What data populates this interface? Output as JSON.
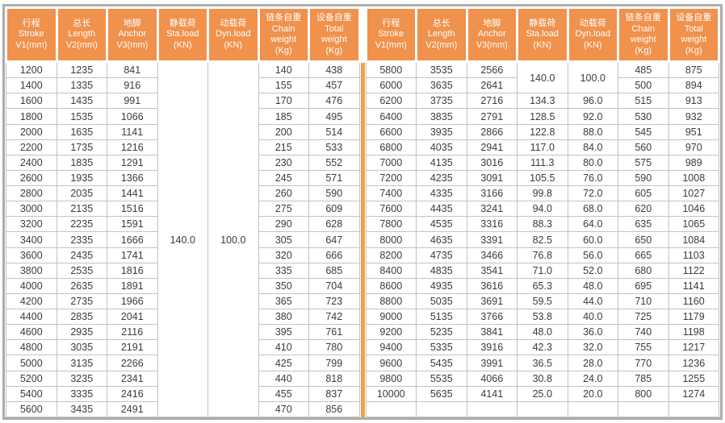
{
  "table": {
    "columns": [
      {
        "id": "stroke",
        "lines": [
          "行程",
          "Stroke",
          "V1(mm)"
        ]
      },
      {
        "id": "length",
        "lines": [
          "总长",
          "Length",
          "V2(mm)"
        ]
      },
      {
        "id": "anchor",
        "lines": [
          "地脚",
          "Anchor",
          "V3(mm)"
        ]
      },
      {
        "id": "sta-load",
        "lines": [
          "静载荷",
          "Sta.load",
          "(KN)"
        ]
      },
      {
        "id": "dyn-load",
        "lines": [
          "动载荷",
          "Dyn.load",
          "(KN)"
        ]
      },
      {
        "id": "chain-weight",
        "lines": [
          "链条自重",
          "Chain",
          "weight",
          "(Kg)"
        ]
      },
      {
        "id": "total-weight",
        "lines": [
          "设备自重",
          "Total",
          "weight",
          "(Kg)"
        ]
      }
    ],
    "halves": {
      "left": {
        "rows": [
          [
            "1200",
            "1235",
            "841",
            "140.0",
            "100.0",
            "140",
            "438"
          ],
          [
            "1400",
            "1335",
            "916",
            null,
            null,
            "155",
            "457"
          ],
          [
            "1600",
            "1435",
            "991",
            null,
            null,
            "170",
            "476"
          ],
          [
            "1800",
            "1535",
            "1066",
            null,
            null,
            "185",
            "495"
          ],
          [
            "2000",
            "1635",
            "1141",
            null,
            null,
            "200",
            "514"
          ],
          [
            "2200",
            "1735",
            "1216",
            null,
            null,
            "215",
            "533"
          ],
          [
            "2400",
            "1835",
            "1291",
            null,
            null,
            "230",
            "552"
          ],
          [
            "2600",
            "1935",
            "1366",
            null,
            null,
            "245",
            "571"
          ],
          [
            "2800",
            "2035",
            "1441",
            null,
            null,
            "260",
            "590"
          ],
          [
            "3000",
            "2135",
            "1516",
            null,
            null,
            "275",
            "609"
          ],
          [
            "3200",
            "2235",
            "1591",
            null,
            null,
            "290",
            "628"
          ],
          [
            "3400",
            "2335",
            "1666",
            null,
            null,
            "305",
            "647"
          ],
          [
            "3600",
            "2435",
            "1741",
            null,
            null,
            "320",
            "666"
          ],
          [
            "3800",
            "2535",
            "1816",
            null,
            null,
            "335",
            "685"
          ],
          [
            "4000",
            "2635",
            "1891",
            null,
            null,
            "350",
            "704"
          ],
          [
            "4200",
            "2735",
            "1966",
            null,
            null,
            "365",
            "723"
          ],
          [
            "4400",
            "2835",
            "2041",
            null,
            null,
            "380",
            "742"
          ],
          [
            "4600",
            "2935",
            "2116",
            null,
            null,
            "395",
            "761"
          ],
          [
            "4800",
            "3035",
            "2191",
            null,
            null,
            "410",
            "780"
          ],
          [
            "5000",
            "3135",
            "2266",
            null,
            null,
            "425",
            "799"
          ],
          [
            "5200",
            "3235",
            "2341",
            null,
            null,
            "440",
            "818"
          ],
          [
            "5400",
            "3335",
            "2416",
            null,
            null,
            "455",
            "837"
          ],
          [
            "5600",
            "3435",
            "2491",
            null,
            null,
            "470",
            "856"
          ]
        ]
      },
      "right": {
        "rows": [
          [
            "5800",
            "3535",
            "2566",
            "140.0",
            "100.0",
            "485",
            "875"
          ],
          [
            "6000",
            "3635",
            "2641",
            null,
            null,
            "500",
            "894"
          ],
          [
            "6200",
            "3735",
            "2716",
            "134.3",
            "96.0",
            "515",
            "913"
          ],
          [
            "6400",
            "3835",
            "2791",
            "128.5",
            "92.0",
            "530",
            "932"
          ],
          [
            "6600",
            "3935",
            "2866",
            "122.8",
            "88.0",
            "545",
            "951"
          ],
          [
            "6800",
            "4035",
            "2941",
            "117.0",
            "84.0",
            "560",
            "970"
          ],
          [
            "7000",
            "4135",
            "3016",
            "111.3",
            "80.0",
            "575",
            "989"
          ],
          [
            "7200",
            "4235",
            "3091",
            "105.5",
            "76.0",
            "590",
            "1008"
          ],
          [
            "7400",
            "4335",
            "3166",
            "99.8",
            "72.0",
            "605",
            "1027"
          ],
          [
            "7600",
            "4435",
            "3241",
            "94.0",
            "68.0",
            "620",
            "1046"
          ],
          [
            "7800",
            "4535",
            "3316",
            "88.3",
            "64.0",
            "635",
            "1065"
          ],
          [
            "8000",
            "4635",
            "3391",
            "82.5",
            "60.0",
            "650",
            "1084"
          ],
          [
            "8200",
            "4735",
            "3466",
            "76.8",
            "56.0",
            "665",
            "1103"
          ],
          [
            "8400",
            "4835",
            "3541",
            "71.0",
            "52.0",
            "680",
            "1122"
          ],
          [
            "8600",
            "4935",
            "3616",
            "65.3",
            "48.0",
            "695",
            "1141"
          ],
          [
            "8800",
            "5035",
            "3691",
            "59.5",
            "44.0",
            "710",
            "1160"
          ],
          [
            "9000",
            "5135",
            "3766",
            "53.8",
            "40.0",
            "725",
            "1179"
          ],
          [
            "9200",
            "5235",
            "3841",
            "48.0",
            "36.0",
            "740",
            "1198"
          ],
          [
            "9400",
            "5335",
            "3916",
            "42.3",
            "32.0",
            "755",
            "1217"
          ],
          [
            "9600",
            "5435",
            "3991",
            "36.5",
            "28.0",
            "770",
            "1236"
          ],
          [
            "9800",
            "5535",
            "4066",
            "30.8",
            "24.0",
            "785",
            "1255"
          ],
          [
            "10000",
            "5635",
            "4141",
            "25.0",
            "20.0",
            "800",
            "1274"
          ],
          [
            "",
            "",
            "",
            "",
            "",
            "",
            ""
          ]
        ]
      }
    },
    "colors": {
      "header_bg": "#F0914C",
      "header_text": "#FFFFFF",
      "divider": "#F2A04E",
      "outer_border": "#ACACAC",
      "cell_border": "#C3C3C3",
      "cell_text": "#3B3B3B"
    }
  }
}
